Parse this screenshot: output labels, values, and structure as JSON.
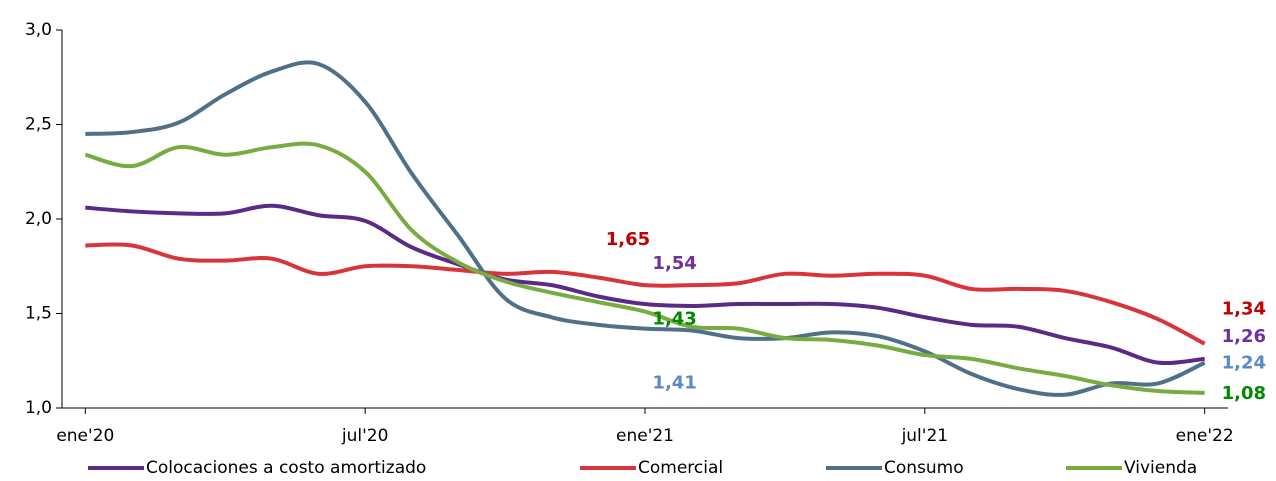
{
  "chart_data": {
    "type": "line",
    "categories": [
      "ene'20",
      null,
      null,
      null,
      null,
      null,
      "jul'20",
      null,
      null,
      null,
      null,
      null,
      "ene'21",
      null,
      null,
      null,
      null,
      null,
      "jul'21",
      null,
      null,
      null,
      null,
      null,
      "ene'22"
    ],
    "ylim": [
      1.0,
      3.0
    ],
    "yticks": [
      {
        "value": 1.0,
        "label": "1,0"
      },
      {
        "value": 1.5,
        "label": "1,5"
      },
      {
        "value": 2.0,
        "label": "2,0"
      },
      {
        "value": 2.5,
        "label": "2,5"
      },
      {
        "value": 3.0,
        "label": "3,0"
      }
    ],
    "series": [
      {
        "name": "Colocaciones a costo amortizado",
        "color": "#5b2a86",
        "values": [
          2.06,
          2.04,
          2.03,
          2.03,
          2.07,
          2.02,
          1.99,
          1.85,
          1.76,
          1.68,
          1.65,
          1.59,
          1.55,
          1.54,
          1.55,
          1.55,
          1.55,
          1.53,
          1.48,
          1.44,
          1.43,
          1.37,
          1.32,
          1.24,
          1.26
        ],
        "value_labels": [
          null,
          null,
          null,
          null,
          null,
          null,
          null,
          null,
          null,
          null,
          null,
          null,
          null,
          "1,54",
          null,
          null,
          null,
          null,
          null,
          null,
          null,
          null,
          null,
          null,
          "1,26"
        ],
        "label_color": "#7030a0"
      },
      {
        "name": "Comercial",
        "color": "#d8353b",
        "values": [
          1.86,
          1.86,
          1.79,
          1.78,
          1.79,
          1.71,
          1.75,
          1.75,
          1.73,
          1.71,
          1.72,
          1.69,
          1.65,
          1.65,
          1.66,
          1.71,
          1.7,
          1.71,
          1.7,
          1.63,
          1.63,
          1.62,
          1.56,
          1.47,
          1.34
        ],
        "value_labels": [
          null,
          null,
          null,
          null,
          null,
          null,
          null,
          null,
          null,
          null,
          null,
          null,
          "1,65",
          null,
          null,
          null,
          null,
          null,
          null,
          null,
          null,
          null,
          null,
          null,
          "1,34"
        ],
        "label_color": "#c00000"
      },
      {
        "name": "Consumo",
        "color": "#4f7089",
        "values": [
          2.45,
          2.46,
          2.51,
          2.66,
          2.78,
          2.82,
          2.62,
          2.24,
          1.91,
          1.58,
          1.48,
          1.44,
          1.42,
          1.41,
          1.37,
          1.37,
          1.4,
          1.38,
          1.3,
          1.18,
          1.1,
          1.07,
          1.13,
          1.13,
          1.24
        ],
        "value_labels": [
          null,
          null,
          null,
          null,
          null,
          null,
          null,
          null,
          null,
          null,
          null,
          null,
          null,
          "1,41",
          null,
          null,
          null,
          null,
          null,
          null,
          null,
          null,
          null,
          null,
          "1,24"
        ],
        "label_color": "#5b8ac6"
      },
      {
        "name": "Vivienda",
        "color": "#77ac42",
        "values": [
          2.34,
          2.28,
          2.38,
          2.34,
          2.38,
          2.39,
          2.25,
          1.94,
          1.77,
          1.67,
          1.61,
          1.56,
          1.51,
          1.43,
          1.42,
          1.37,
          1.36,
          1.33,
          1.28,
          1.26,
          1.21,
          1.17,
          1.12,
          1.09,
          1.08
        ],
        "value_labels": [
          null,
          null,
          null,
          null,
          null,
          null,
          null,
          null,
          null,
          null,
          null,
          null,
          null,
          "1,43",
          null,
          null,
          null,
          null,
          null,
          null,
          null,
          null,
          null,
          null,
          "1,08"
        ],
        "label_color": "#008a00"
      }
    ]
  }
}
